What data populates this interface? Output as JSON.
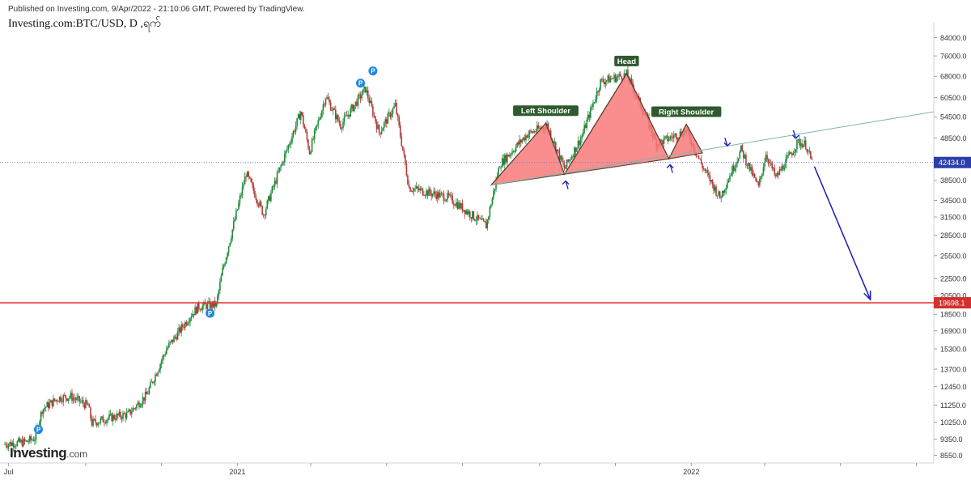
{
  "header": {
    "published": "Published on Investing.com, 9/Apr/2022 - 21:10:06 GMT, Powered by TradingView.",
    "symbol": "Investing.com:BTC/USD, D ,ရက်"
  },
  "logo": {
    "main": "Investing",
    "domain": ".com"
  },
  "colors": {
    "up": "#1f8a3b",
    "down": "#b13b36",
    "pattern_fill": "#f97a7a",
    "pattern_stroke": "#5a3b2a",
    "label_bg": "#2e5a2e",
    "support": "#e53935",
    "trendline": "#7ab8a8",
    "arrow": "#1a1ab8",
    "price_line": "#6b7bd6",
    "p_marker": "#1e88e5"
  },
  "chart_data": {
    "type": "candlestick",
    "title": "BTC/USD, D",
    "x_range": [
      "2020-06-28",
      "2022-07-15"
    ],
    "x_tick_labels": [
      {
        "date": "2020-07-01",
        "label": "Jul"
      },
      {
        "date": "2021-01-01",
        "label": "2021"
      },
      {
        "date": "2022-01-01",
        "label": "2022"
      }
    ],
    "y_scale": "log",
    "y_tick_values": [
      84000,
      76000,
      68000,
      60500,
      54500,
      48500,
      42434,
      38500,
      34500,
      31500,
      28500,
      25500,
      22500,
      20500,
      19698.1,
      18500,
      16900,
      15300,
      13700,
      12450,
      11250,
      10250,
      9350,
      8550
    ],
    "y_tick_labels": [
      "84000.0",
      "76000.0",
      "68000.0",
      "60500.0",
      "54500.0",
      "48500.0",
      "",
      "38500.0",
      "34500.0",
      "31500.0",
      "28500.0",
      "25500.0",
      "22500.0",
      "20500.0",
      "",
      "18500.0",
      "16900.0",
      "15300.0",
      "13700.0",
      "12450.0",
      "11250.0",
      "10250.0",
      "9350.0",
      "8550.0"
    ],
    "last_price": {
      "value": 42434.0,
      "label": "42434.0"
    },
    "support_level": {
      "value": 19698.1,
      "label": "19698.1"
    },
    "price_path": [
      [
        "2020-06-28",
        9100
      ],
      [
        "2020-07-15",
        9200
      ],
      [
        "2020-07-22",
        9400
      ],
      [
        "2020-07-28",
        11000
      ],
      [
        "2020-08-10",
        11700
      ],
      [
        "2020-08-20",
        11800
      ],
      [
        "2020-09-03",
        11200
      ],
      [
        "2020-09-06",
        10200
      ],
      [
        "2020-09-20",
        10500
      ],
      [
        "2020-10-05",
        10700
      ],
      [
        "2020-10-20",
        11900
      ],
      [
        "2020-11-05",
        15300
      ],
      [
        "2020-11-25",
        18500
      ],
      [
        "2020-12-01",
        19300
      ],
      [
        "2020-12-15",
        19500
      ],
      [
        "2020-12-20",
        23500
      ],
      [
        "2021-01-08",
        40000
      ],
      [
        "2021-01-22",
        32000
      ],
      [
        "2021-02-08",
        44000
      ],
      [
        "2021-02-21",
        56000
      ],
      [
        "2021-02-28",
        45000
      ],
      [
        "2021-03-13",
        61000
      ],
      [
        "2021-03-25",
        52000
      ],
      [
        "2021-04-14",
        63500
      ],
      [
        "2021-04-25",
        50000
      ],
      [
        "2021-05-08",
        58000
      ],
      [
        "2021-05-19",
        37000
      ],
      [
        "2021-06-20",
        35000
      ],
      [
        "2021-07-20",
        30000
      ],
      [
        "2021-07-31",
        42000
      ],
      [
        "2021-08-22",
        49500
      ],
      [
        "2021-09-07",
        52000
      ],
      [
        "2021-09-21",
        41000
      ],
      [
        "2021-10-05",
        49000
      ],
      [
        "2021-10-20",
        66000
      ],
      [
        "2021-11-10",
        68700
      ],
      [
        "2021-11-26",
        54000
      ],
      [
        "2021-12-04",
        47000
      ],
      [
        "2021-12-28",
        50500
      ],
      [
        "2022-01-10",
        41500
      ],
      [
        "2022-01-24",
        35000
      ],
      [
        "2022-02-10",
        45500
      ],
      [
        "2022-02-24",
        37000
      ],
      [
        "2022-03-02",
        44500
      ],
      [
        "2022-03-10",
        39000
      ],
      [
        "2022-03-28",
        47500
      ],
      [
        "2022-04-03",
        46800
      ],
      [
        "2022-04-08",
        42434
      ]
    ],
    "markers": [
      {
        "label": "P",
        "date": "2020-07-25",
        "price": 9850
      },
      {
        "label": "P",
        "date": "2020-12-10",
        "price": 18600
      },
      {
        "label": "P",
        "date": "2021-04-10",
        "price": 65500
      },
      {
        "label": "P",
        "date": "2021-04-20",
        "price": 70000
      }
    ],
    "pattern": {
      "name": "head-and-shoulders",
      "points": [
        [
          "2021-07-24",
          37500
        ],
        [
          "2021-09-06",
          52600
        ],
        [
          "2021-09-21",
          39800
        ],
        [
          "2021-11-10",
          69000
        ],
        [
          "2021-12-14",
          43300
        ],
        [
          "2021-12-28",
          52300
        ],
        [
          "2022-01-10",
          44700
        ]
      ],
      "labels": [
        {
          "text": "Left Shoulder",
          "date": "2021-09-06",
          "price": 52600
        },
        {
          "text": "Head",
          "date": "2021-11-10",
          "price": 69000
        },
        {
          "text": "Right Shoulder",
          "date": "2021-12-28",
          "price": 52300
        }
      ]
    },
    "trendline": {
      "from": [
        "2021-07-24",
        37500
      ],
      "to": [
        "2022-07-15",
        56000
      ]
    },
    "projection_arrow": {
      "from": [
        "2022-04-10",
        41500
      ],
      "to": [
        "2022-05-25",
        19698.1
      ]
    },
    "small_arrows": [
      {
        "date": "2021-09-22",
        "price": 37500,
        "direction": "up"
      },
      {
        "date": "2021-12-15",
        "price": 41000,
        "direction": "up"
      },
      {
        "date": "2022-01-30",
        "price": 47500,
        "direction": "down"
      },
      {
        "date": "2022-03-26",
        "price": 49500,
        "direction": "down"
      }
    ]
  }
}
